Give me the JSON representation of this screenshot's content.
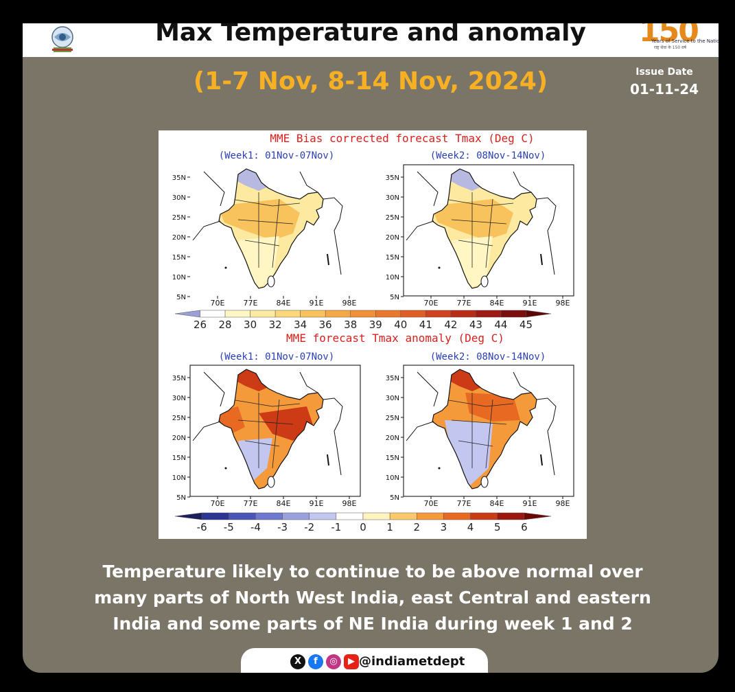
{
  "header": {
    "title": "Max Temperature and anomaly",
    "subtitle": "(1-7 Nov, 8-14 Nov, 2024)",
    "issue_label": "Issue Date",
    "issue_date": "01-11-24",
    "anniv_mark": "150",
    "anniv_line1": "Years of Service to the Nation",
    "anniv_line2": "राष्ट्र सेवा के 150 वर्ष"
  },
  "figure": {
    "panel_top_title": "MME Bias corrected forecast Tmax (Deg C)",
    "panel_bottom_title": "MME forecast Tmax anomaly (Deg C)",
    "week1_label": "(Week1: 01Nov-07Nov)",
    "week2_label": "(Week2: 08Nov-14Nov)",
    "lat_ticks": [
      "35N",
      "30N",
      "25N",
      "20N",
      "15N",
      "10N",
      "5N"
    ],
    "lon_ticks": [
      "70E",
      "77E",
      "84E",
      "91E",
      "98E"
    ],
    "tmax_scale": [
      "26",
      "28",
      "30",
      "32",
      "34",
      "36",
      "38",
      "39",
      "40",
      "41",
      "42",
      "43",
      "44",
      "45"
    ],
    "anom_scale": [
      "-6",
      "-5",
      "-4",
      "-3",
      "-2",
      "-1",
      "0",
      "1",
      "2",
      "3",
      "4",
      "5",
      "6"
    ],
    "tmax_colors": [
      "#9aa0d6",
      "#ffffff",
      "#fff6c4",
      "#fdeaa0",
      "#fbd77a",
      "#f8c25c",
      "#f5a946",
      "#f09038",
      "#e9782e",
      "#df5f26",
      "#cf4320",
      "#b82d1a",
      "#9c1b14",
      "#7a0f0e",
      "#5c0808"
    ],
    "anom_colors": [
      "#1b1f5e",
      "#2d3592",
      "#4a55b8",
      "#6e78cc",
      "#9aa0de",
      "#c3c6ee",
      "#ffffff",
      "#fff3c0",
      "#fbc86a",
      "#f59a3a",
      "#e86a22",
      "#cc3a16",
      "#9c180e",
      "#6e0808"
    ]
  },
  "description": {
    "line1": "Temperature likely to continue to be above normal over",
    "line2": "many parts of North West India, east Central and eastern",
    "line3": "India and some parts of NE India during week 1 and 2"
  },
  "social": {
    "handle": "@indiametdept",
    "icons": [
      "x-icon",
      "facebook-icon",
      "instagram-icon",
      "youtube-icon"
    ]
  }
}
